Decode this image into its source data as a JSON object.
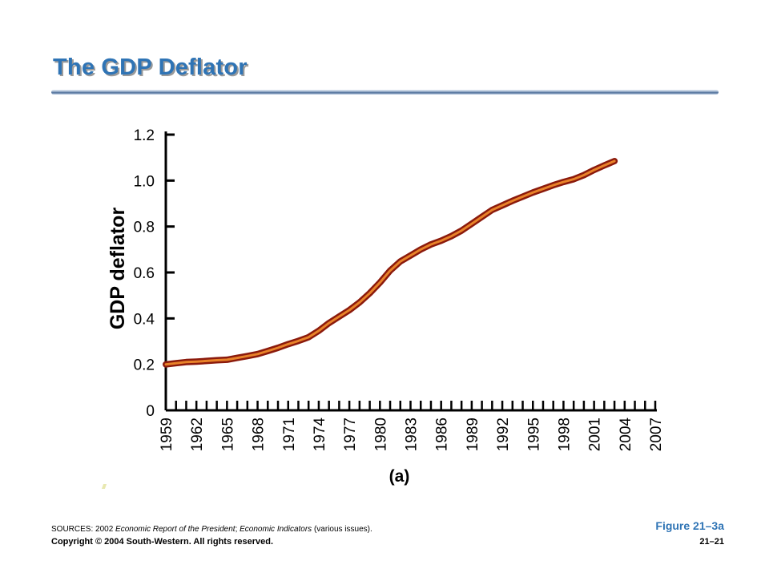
{
  "slide": {
    "title": "The GDP Deflator",
    "figure_label": "Figure 21–3a",
    "sources": {
      "prefix": "SOURCES: 2002 ",
      "report": "Economic Report of the President",
      "sep": "; ",
      "indicators": "Economic Indicators",
      "suffix": " (various issues)."
    },
    "copyright": "Copyright © 2004 South-Western. All rights reserved.",
    "page_number": "21–21"
  },
  "chart_data": {
    "type": "line",
    "ylabel": "GDP deflator",
    "xlabel": "(a)",
    "ylim": [
      0,
      1.2
    ],
    "xlim": [
      1959,
      2007
    ],
    "yticks": [
      0,
      0.2,
      0.4,
      0.6,
      0.8,
      1.0,
      1.2
    ],
    "ytick_labels": [
      "0",
      "0.2",
      "0.4",
      "0.6",
      "0.8",
      "1.0",
      "1.2"
    ],
    "xtick_labels": [
      "1959",
      "1962",
      "1965",
      "1968",
      "1971",
      "1974",
      "1977",
      "1980",
      "1983",
      "1986",
      "1989",
      "1992",
      "1995",
      "1998",
      "2001",
      "2004",
      "2007"
    ],
    "grid": false,
    "line_color": "#8b1a0c",
    "line_glow": "#e8832a",
    "series": [
      {
        "x": [
          1959,
          1960,
          1961,
          1962,
          1963,
          1964,
          1965,
          1966,
          1967,
          1968,
          1969,
          1970,
          1971,
          1972,
          1973,
          1974,
          1975,
          1976,
          1977,
          1978,
          1979,
          1980,
          1981,
          1982,
          1983,
          1984,
          1985,
          1986,
          1987,
          1988,
          1989,
          1990,
          1991,
          1992,
          1993,
          1994,
          1995,
          1996,
          1997,
          1998,
          1999,
          2000,
          2001,
          2002,
          2003
        ],
        "values": [
          0.2,
          0.205,
          0.21,
          0.212,
          0.215,
          0.218,
          0.22,
          0.228,
          0.236,
          0.245,
          0.258,
          0.272,
          0.288,
          0.302,
          0.318,
          0.346,
          0.38,
          0.408,
          0.436,
          0.47,
          0.51,
          0.556,
          0.608,
          0.648,
          0.674,
          0.7,
          0.722,
          0.738,
          0.758,
          0.782,
          0.812,
          0.842,
          0.872,
          0.892,
          0.912,
          0.93,
          0.948,
          0.964,
          0.98,
          0.994,
          1.006,
          1.024,
          1.046,
          1.066,
          1.085
        ]
      }
    ]
  }
}
